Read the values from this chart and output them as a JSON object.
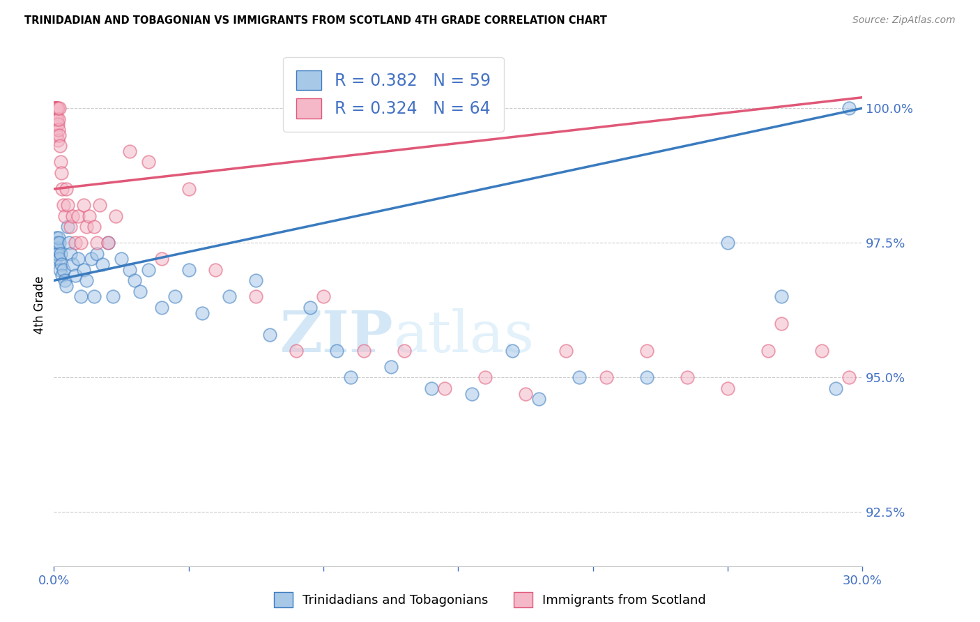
{
  "title": "TRINIDADIAN AND TOBAGONIAN VS IMMIGRANTS FROM SCOTLAND 4TH GRADE CORRELATION CHART",
  "source": "Source: ZipAtlas.com",
  "ylabel": "4th Grade",
  "xmin": 0.0,
  "xmax": 30.0,
  "ymin": 91.5,
  "ymax": 101.2,
  "yticks": [
    92.5,
    95.0,
    97.5,
    100.0
  ],
  "ytick_labels": [
    "92.5%",
    "95.0%",
    "97.5%",
    "100.0%"
  ],
  "xticks": [
    0.0,
    5.0,
    10.0,
    15.0,
    20.0,
    25.0,
    30.0
  ],
  "blue_R": 0.382,
  "blue_N": 59,
  "pink_R": 0.324,
  "pink_N": 64,
  "blue_color": "#a8c8e8",
  "pink_color": "#f4b8c8",
  "blue_line_color": "#3a7bbf",
  "pink_line_color": "#e05878",
  "legend_label_blue": "Trinidadians and Tobagonians",
  "legend_label_pink": "Immigrants from Scotland",
  "blue_scatter_x": [
    0.05,
    0.08,
    0.08,
    0.1,
    0.1,
    0.12,
    0.15,
    0.15,
    0.18,
    0.2,
    0.2,
    0.22,
    0.25,
    0.28,
    0.3,
    0.35,
    0.4,
    0.45,
    0.5,
    0.55,
    0.6,
    0.7,
    0.8,
    0.9,
    1.0,
    1.1,
    1.2,
    1.4,
    1.5,
    1.6,
    1.8,
    2.0,
    2.2,
    2.5,
    2.8,
    3.0,
    3.2,
    3.5,
    4.0,
    4.5,
    5.0,
    5.5,
    6.5,
    7.5,
    8.0,
    9.5,
    10.5,
    11.0,
    12.5,
    14.0,
    15.5,
    17.0,
    18.0,
    19.5,
    22.0,
    25.0,
    27.0,
    29.0,
    29.5
  ],
  "blue_scatter_y": [
    97.4,
    97.2,
    97.5,
    97.3,
    97.6,
    97.5,
    97.4,
    97.3,
    97.6,
    97.5,
    97.2,
    97.0,
    97.3,
    97.1,
    96.9,
    97.0,
    96.8,
    96.7,
    97.8,
    97.5,
    97.3,
    97.1,
    96.9,
    97.2,
    96.5,
    97.0,
    96.8,
    97.2,
    96.5,
    97.3,
    97.1,
    97.5,
    96.5,
    97.2,
    97.0,
    96.8,
    96.6,
    97.0,
    96.3,
    96.5,
    97.0,
    96.2,
    96.5,
    96.8,
    95.8,
    96.3,
    95.5,
    95.0,
    95.2,
    94.8,
    94.7,
    95.5,
    94.6,
    95.0,
    95.0,
    97.5,
    96.5,
    94.8,
    100.0
  ],
  "pink_scatter_x": [
    0.02,
    0.03,
    0.04,
    0.05,
    0.05,
    0.06,
    0.07,
    0.08,
    0.08,
    0.09,
    0.1,
    0.1,
    0.12,
    0.13,
    0.14,
    0.15,
    0.15,
    0.17,
    0.18,
    0.2,
    0.2,
    0.22,
    0.25,
    0.28,
    0.3,
    0.35,
    0.4,
    0.45,
    0.5,
    0.6,
    0.7,
    0.8,
    0.9,
    1.0,
    1.1,
    1.2,
    1.3,
    1.5,
    1.6,
    1.7,
    2.0,
    2.3,
    2.8,
    3.5,
    4.0,
    5.0,
    6.0,
    7.5,
    9.0,
    10.0,
    11.5,
    13.0,
    14.5,
    16.0,
    17.5,
    19.0,
    20.5,
    22.0,
    23.5,
    25.0,
    26.5,
    27.0,
    28.5,
    29.5
  ],
  "pink_scatter_y": [
    99.7,
    100.0,
    100.0,
    100.0,
    99.8,
    99.9,
    100.0,
    100.0,
    99.6,
    99.8,
    100.0,
    99.5,
    99.8,
    100.0,
    99.7,
    100.0,
    99.4,
    99.6,
    99.8,
    99.5,
    100.0,
    99.3,
    99.0,
    98.8,
    98.5,
    98.2,
    98.0,
    98.5,
    98.2,
    97.8,
    98.0,
    97.5,
    98.0,
    97.5,
    98.2,
    97.8,
    98.0,
    97.8,
    97.5,
    98.2,
    97.5,
    98.0,
    99.2,
    99.0,
    97.2,
    98.5,
    97.0,
    96.5,
    95.5,
    96.5,
    95.5,
    95.5,
    94.8,
    95.0,
    94.7,
    95.5,
    95.0,
    95.5,
    95.0,
    94.8,
    95.5,
    96.0,
    95.5,
    95.0
  ],
  "blue_trendline_x": [
    0.0,
    30.0
  ],
  "blue_trendline_y": [
    96.8,
    100.0
  ],
  "pink_trendline_x": [
    0.0,
    30.0
  ],
  "pink_trendline_y": [
    98.5,
    100.2
  ]
}
